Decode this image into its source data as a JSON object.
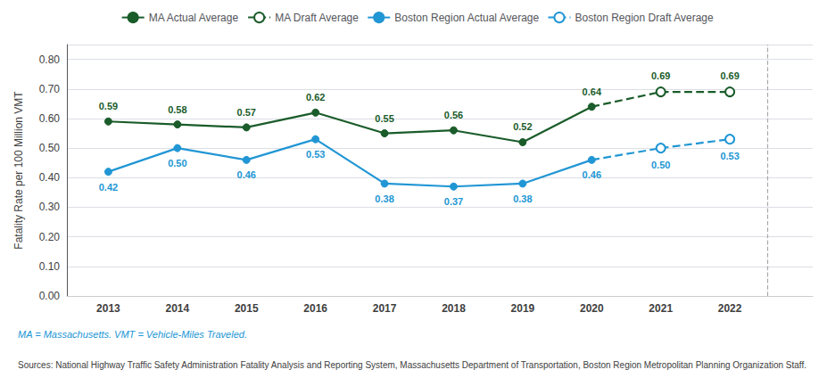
{
  "chart_data": {
    "type": "line",
    "ylabel": "Fatality Rate per 100 Million VMT",
    "xlim": [
      2012.4,
      2023.2
    ],
    "xticks": [
      2013,
      2014,
      2015,
      2016,
      2017,
      2018,
      2019,
      2020,
      2021,
      2022
    ],
    "ylim": [
      0.0,
      0.85
    ],
    "yticks": [
      {
        "value": 0.0,
        "label": "0.00"
      },
      {
        "value": 0.1,
        "label": "0.10"
      },
      {
        "value": 0.2,
        "label": "0.20"
      },
      {
        "value": 0.3,
        "label": "0.30"
      },
      {
        "value": 0.4,
        "label": "0.40"
      },
      {
        "value": 0.5,
        "label": "0.50"
      },
      {
        "value": 0.6,
        "label": "0.60"
      },
      {
        "value": 0.7,
        "label": "0.70"
      },
      {
        "value": 0.8,
        "label": "0.80"
      }
    ],
    "grid": "y",
    "legend": "top",
    "data_labels": true,
    "series": [
      {
        "name": "MA Actual Average",
        "color": "#1a5c2a",
        "line_style": "solid",
        "marker": "circle",
        "x": [
          2013,
          2014,
          2015,
          2016,
          2017,
          2018,
          2019,
          2020
        ],
        "values": [
          0.59,
          0.58,
          0.57,
          0.62,
          0.55,
          0.56,
          0.52,
          0.64
        ],
        "value_labels": [
          "0.59",
          "0.58",
          "0.57",
          "0.62",
          "0.55",
          "0.56",
          "0.52",
          "0.64"
        ]
      },
      {
        "name": "MA Draft Average",
        "color": "#1a5c2a",
        "line_style": "dashed",
        "marker": "open circle",
        "continues": "MA Actual Average",
        "x": [
          2021,
          2022
        ],
        "values": [
          0.69,
          0.69
        ],
        "value_labels": [
          "0.69",
          "0.69"
        ]
      },
      {
        "name": "Boston Region Actual Average",
        "color": "#2196d4",
        "line_style": "solid",
        "marker": "circle",
        "x": [
          2013,
          2014,
          2015,
          2016,
          2017,
          2018,
          2019,
          2020
        ],
        "values": [
          0.42,
          0.5,
          0.46,
          0.53,
          0.38,
          0.37,
          0.38,
          0.46
        ],
        "value_labels": [
          "0.42",
          "0.50",
          "0.46",
          "0.53",
          "0.38",
          "0.37",
          "0.38",
          "0.46"
        ]
      },
      {
        "name": "Boston Region Draft Average",
        "color": "#2196d4",
        "line_style": "dashed",
        "marker": "open circle",
        "continues": "Boston Region Actual Average",
        "x": [
          2021,
          2022
        ],
        "values": [
          0.5,
          0.53
        ],
        "value_labels": [
          "0.50",
          "0.53"
        ]
      }
    ],
    "vline": {
      "x": 2022.55,
      "color": "#aaaaaa",
      "line_style": "dashed"
    },
    "annotations": [
      {
        "text": "MA = Massachusetts. VMT = Vehicle-Miles Traveled.",
        "color": "#2196d4"
      },
      {
        "text": "Sources: National Highway Traffic Safety Administration Fatality Analysis and Reporting System, Massachusetts Department of Transportation, Boston Region Metropolitan Planning Organization Staff.",
        "color": "#404040"
      }
    ]
  }
}
